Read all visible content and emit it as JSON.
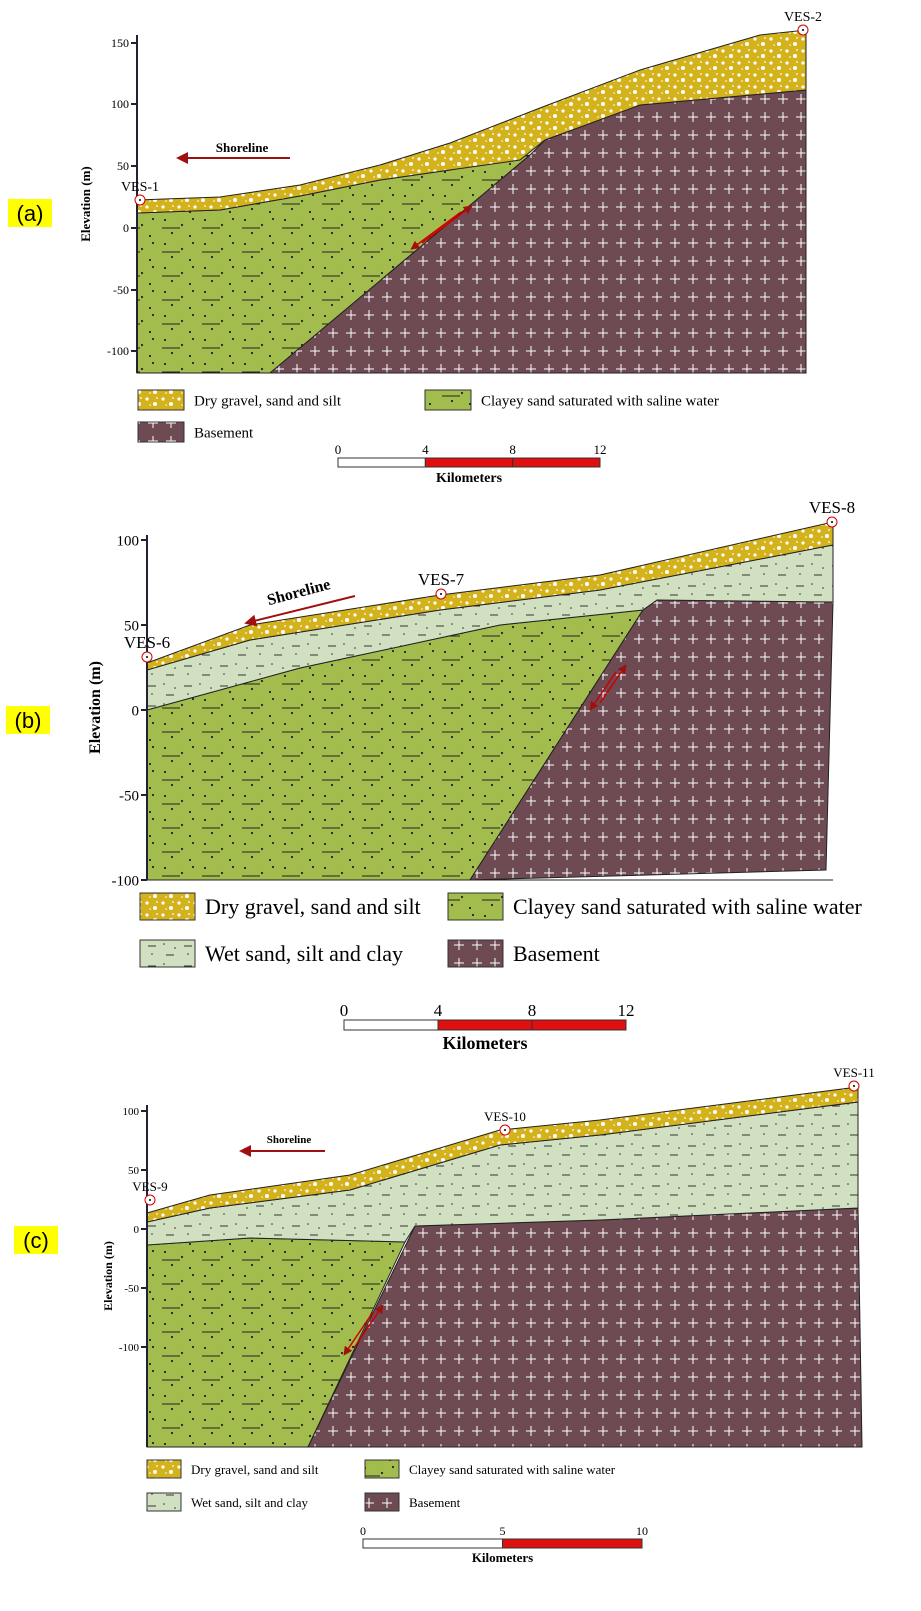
{
  "panels": [
    {
      "label": "(a)",
      "axis_title": "Elevation (m)",
      "yticks": [
        "150",
        "100",
        "50",
        "0",
        "-50",
        "-100"
      ],
      "wells": [
        "VES-1",
        "VES-2"
      ],
      "shoreline": "Shoreline",
      "legend": [
        "Dry gravel, sand and silt",
        "Clayey sand saturated with saline water",
        "Basement"
      ],
      "scale_ticks": [
        "0",
        "4",
        "8",
        "12"
      ],
      "scale_title": "Kilometers"
    },
    {
      "label": "(b)",
      "axis_title": "Elevation (m)",
      "yticks": [
        "100",
        "50",
        "0",
        "-50",
        "-100"
      ],
      "wells": [
        "VES-6",
        "VES-7",
        "VES-8"
      ],
      "shoreline": "Shoreline",
      "legend": [
        "Dry gravel, sand and silt",
        "Clayey sand saturated with saline water",
        "Wet sand, silt and clay",
        "Basement"
      ],
      "scale_ticks": [
        "0",
        "4",
        "8",
        "12"
      ],
      "scale_title": "Kilometers"
    },
    {
      "label": "(c)",
      "axis_title": "Elevation (m)",
      "yticks": [
        "100",
        "50",
        "0",
        "-50",
        "-100"
      ],
      "wells": [
        "VES-9",
        "VES-10",
        "VES-11"
      ],
      "shoreline": "Shoreline",
      "legend": [
        "Dry gravel, sand and silt",
        "Clayey sand saturated with saline water",
        "Wet sand, silt and clay",
        "Basement"
      ],
      "scale_ticks": [
        "0",
        "5",
        "10"
      ],
      "scale_title": "Kilometers"
    }
  ]
}
